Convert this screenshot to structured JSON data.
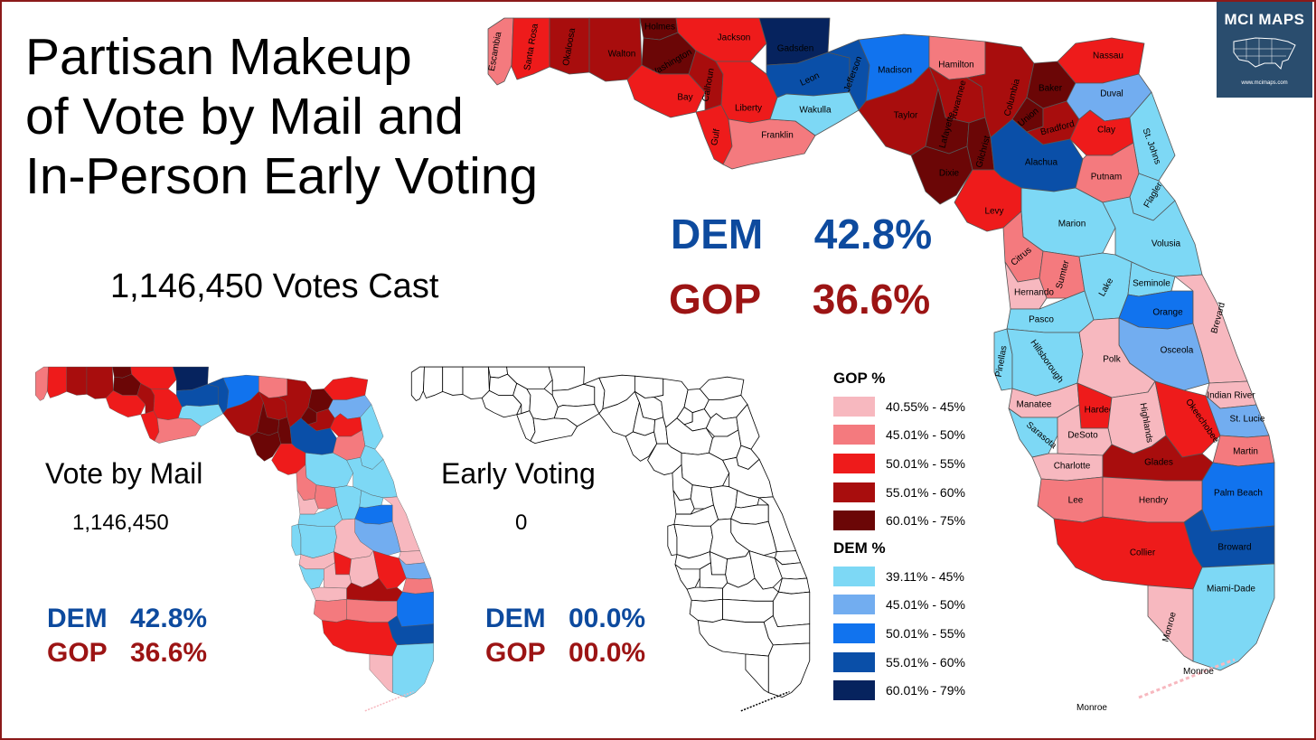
{
  "title": {
    "line1": "Partisan Makeup",
    "line2": "of Vote by Mail and",
    "line3": "In-Person Early Voting"
  },
  "votes_cast": "1,146,450 Votes Cast",
  "overall": {
    "dem_label": "DEM",
    "dem_value": "42.8%",
    "gop_label": "GOP",
    "gop_value": "36.6%"
  },
  "vote_by_mail": {
    "label": "Vote by Mail",
    "count": "1,146,450",
    "dem_label": "DEM",
    "dem_value": "42.8%",
    "gop_label": "GOP",
    "gop_value": "36.6%"
  },
  "early_voting": {
    "label": "Early Voting",
    "count": "0",
    "dem_label": "DEM",
    "dem_value": "00.0%",
    "gop_label": "GOP",
    "gop_value": "00.0%"
  },
  "logo": {
    "title": "MCI MAPS",
    "url": "www.mcimaps.com",
    "icon": "us-map-icon"
  },
  "colors": {
    "gop1": "#f7b8bf",
    "gop2": "#f47a7e",
    "gop3": "#ee1b1b",
    "gop4": "#a80d0d",
    "gop5": "#6b0606",
    "dem1": "#7dd8f5",
    "dem2": "#72adf0",
    "dem3": "#1173ee",
    "dem4": "#0a4fa8",
    "dem5": "#06235e",
    "dem_text": "#0d4a9e",
    "gop_text": "#9c1414",
    "frame": "#8b1a1a",
    "logo_bg": "#2a4d6e"
  },
  "legend": {
    "gop_header": "GOP  %",
    "gop": [
      {
        "range": "40.55% - 45%",
        "color": "#f7b8bf"
      },
      {
        "range": "45.01% - 50%",
        "color": "#f47a7e"
      },
      {
        "range": "50.01% - 55%",
        "color": "#ee1b1b"
      },
      {
        "range": "55.01% - 60%",
        "color": "#a80d0d"
      },
      {
        "range": "60.01% - 75%",
        "color": "#6b0606"
      }
    ],
    "dem_header": "DEM  %",
    "dem": [
      {
        "range": "39.11% - 45%",
        "color": "#7dd8f5"
      },
      {
        "range": "45.01% - 50%",
        "color": "#72adf0"
      },
      {
        "range": "50.01% - 55%",
        "color": "#1173ee"
      },
      {
        "range": "55.01% - 60%",
        "color": "#0a4fa8"
      },
      {
        "range": "60.01% - 79%",
        "color": "#06235e"
      }
    ]
  },
  "counties": [
    {
      "name": "Escambia",
      "level": "gop2"
    },
    {
      "name": "Santa Rosa",
      "level": "gop3"
    },
    {
      "name": "Okaloosa",
      "level": "gop4"
    },
    {
      "name": "Walton",
      "level": "gop4"
    },
    {
      "name": "Holmes",
      "level": "gop5"
    },
    {
      "name": "Washington",
      "level": "gop5"
    },
    {
      "name": "Jackson",
      "level": "gop3"
    },
    {
      "name": "Bay",
      "level": "gop3"
    },
    {
      "name": "Calhoun",
      "level": "gop4"
    },
    {
      "name": "Gulf",
      "level": "gop3"
    },
    {
      "name": "Liberty",
      "level": "gop3"
    },
    {
      "name": "Franklin",
      "level": "gop2"
    },
    {
      "name": "Gadsden",
      "level": "dem5"
    },
    {
      "name": "Leon",
      "level": "dem4"
    },
    {
      "name": "Wakulla",
      "level": "dem1"
    },
    {
      "name": "Jefferson",
      "level": "dem4"
    },
    {
      "name": "Madison",
      "level": "dem3"
    },
    {
      "name": "Taylor",
      "level": "gop4"
    },
    {
      "name": "Hamilton",
      "level": "gop2"
    },
    {
      "name": "Suwannee",
      "level": "gop4"
    },
    {
      "name": "Lafayette",
      "level": "gop5"
    },
    {
      "name": "Dixie",
      "level": "gop5"
    },
    {
      "name": "Gilchrist",
      "level": "gop5"
    },
    {
      "name": "Columbia",
      "level": "gop4"
    },
    {
      "name": "Baker",
      "level": "gop5"
    },
    {
      "name": "Union",
      "level": "gop5"
    },
    {
      "name": "Bradford",
      "level": "gop4"
    },
    {
      "name": "Nassau",
      "level": "gop3"
    },
    {
      "name": "Duval",
      "level": "dem2"
    },
    {
      "name": "Clay",
      "level": "gop3"
    },
    {
      "name": "St. Johns",
      "level": "dem1"
    },
    {
      "name": "Alachua",
      "level": "dem4"
    },
    {
      "name": "Putnam",
      "level": "gop2"
    },
    {
      "name": "Flagler",
      "level": "dem1"
    },
    {
      "name": "Levy",
      "level": "gop3"
    },
    {
      "name": "Marion",
      "level": "dem1"
    },
    {
      "name": "Volusia",
      "level": "dem1"
    },
    {
      "name": "Citrus",
      "level": "gop2"
    },
    {
      "name": "Sumter",
      "level": "gop2"
    },
    {
      "name": "Lake",
      "level": "dem1"
    },
    {
      "name": "Seminole",
      "level": "dem1"
    },
    {
      "name": "Hernando",
      "level": "gop1"
    },
    {
      "name": "Orange",
      "level": "dem3"
    },
    {
      "name": "Brevard",
      "level": "gop1"
    },
    {
      "name": "Pasco",
      "level": "dem1"
    },
    {
      "name": "Osceola",
      "level": "dem2"
    },
    {
      "name": "Pinellas",
      "level": "dem1"
    },
    {
      "name": "Hillsborough",
      "level": "dem1"
    },
    {
      "name": "Polk",
      "level": "gop1"
    },
    {
      "name": "Indian River",
      "level": "gop1"
    },
    {
      "name": "Manatee",
      "level": "gop1"
    },
    {
      "name": "Hardee",
      "level": "gop3"
    },
    {
      "name": "Highlands",
      "level": "gop1"
    },
    {
      "name": "Okeechobee",
      "level": "gop3"
    },
    {
      "name": "St. Lucie",
      "level": "dem2"
    },
    {
      "name": "Sarasota",
      "level": "dem1"
    },
    {
      "name": "DeSoto",
      "level": "gop1"
    },
    {
      "name": "Martin",
      "level": "gop2"
    },
    {
      "name": "Charlotte",
      "level": "gop1"
    },
    {
      "name": "Glades",
      "level": "gop4"
    },
    {
      "name": "Palm Beach",
      "level": "dem3"
    },
    {
      "name": "Lee",
      "level": "gop2"
    },
    {
      "name": "Hendry",
      "level": "gop2"
    },
    {
      "name": "Broward",
      "level": "dem4"
    },
    {
      "name": "Collier",
      "level": "gop3"
    },
    {
      "name": "Miami-Dade",
      "level": "dem1"
    },
    {
      "name": "Monroe",
      "level": "gop1"
    }
  ],
  "extra_labels": [
    "Monroe",
    "Monroe"
  ]
}
